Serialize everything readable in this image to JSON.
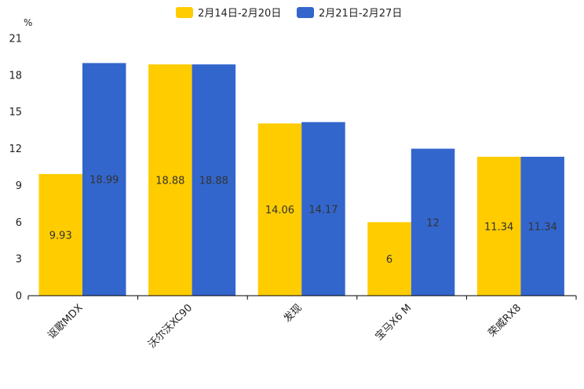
{
  "chart_data": {
    "type": "bar",
    "unit": "%",
    "categories": [
      "讴歌MDX",
      "沃尔沃XC90",
      "发现",
      "宝马X6 M",
      "荣威RX8"
    ],
    "series": [
      {
        "name": "2月14日-2月20日",
        "color": "#ffcc00",
        "values": [
          9.93,
          18.88,
          14.06,
          6,
          11.34
        ]
      },
      {
        "name": "2月21日-2月27日",
        "color": "#3366cc",
        "values": [
          18.99,
          18.88,
          14.17,
          12,
          11.34
        ]
      }
    ],
    "ylim": [
      0,
      21
    ],
    "yticks": [
      0,
      3,
      6,
      9,
      12,
      15,
      18,
      21
    ],
    "legend_position": "top-center",
    "grid": false
  }
}
